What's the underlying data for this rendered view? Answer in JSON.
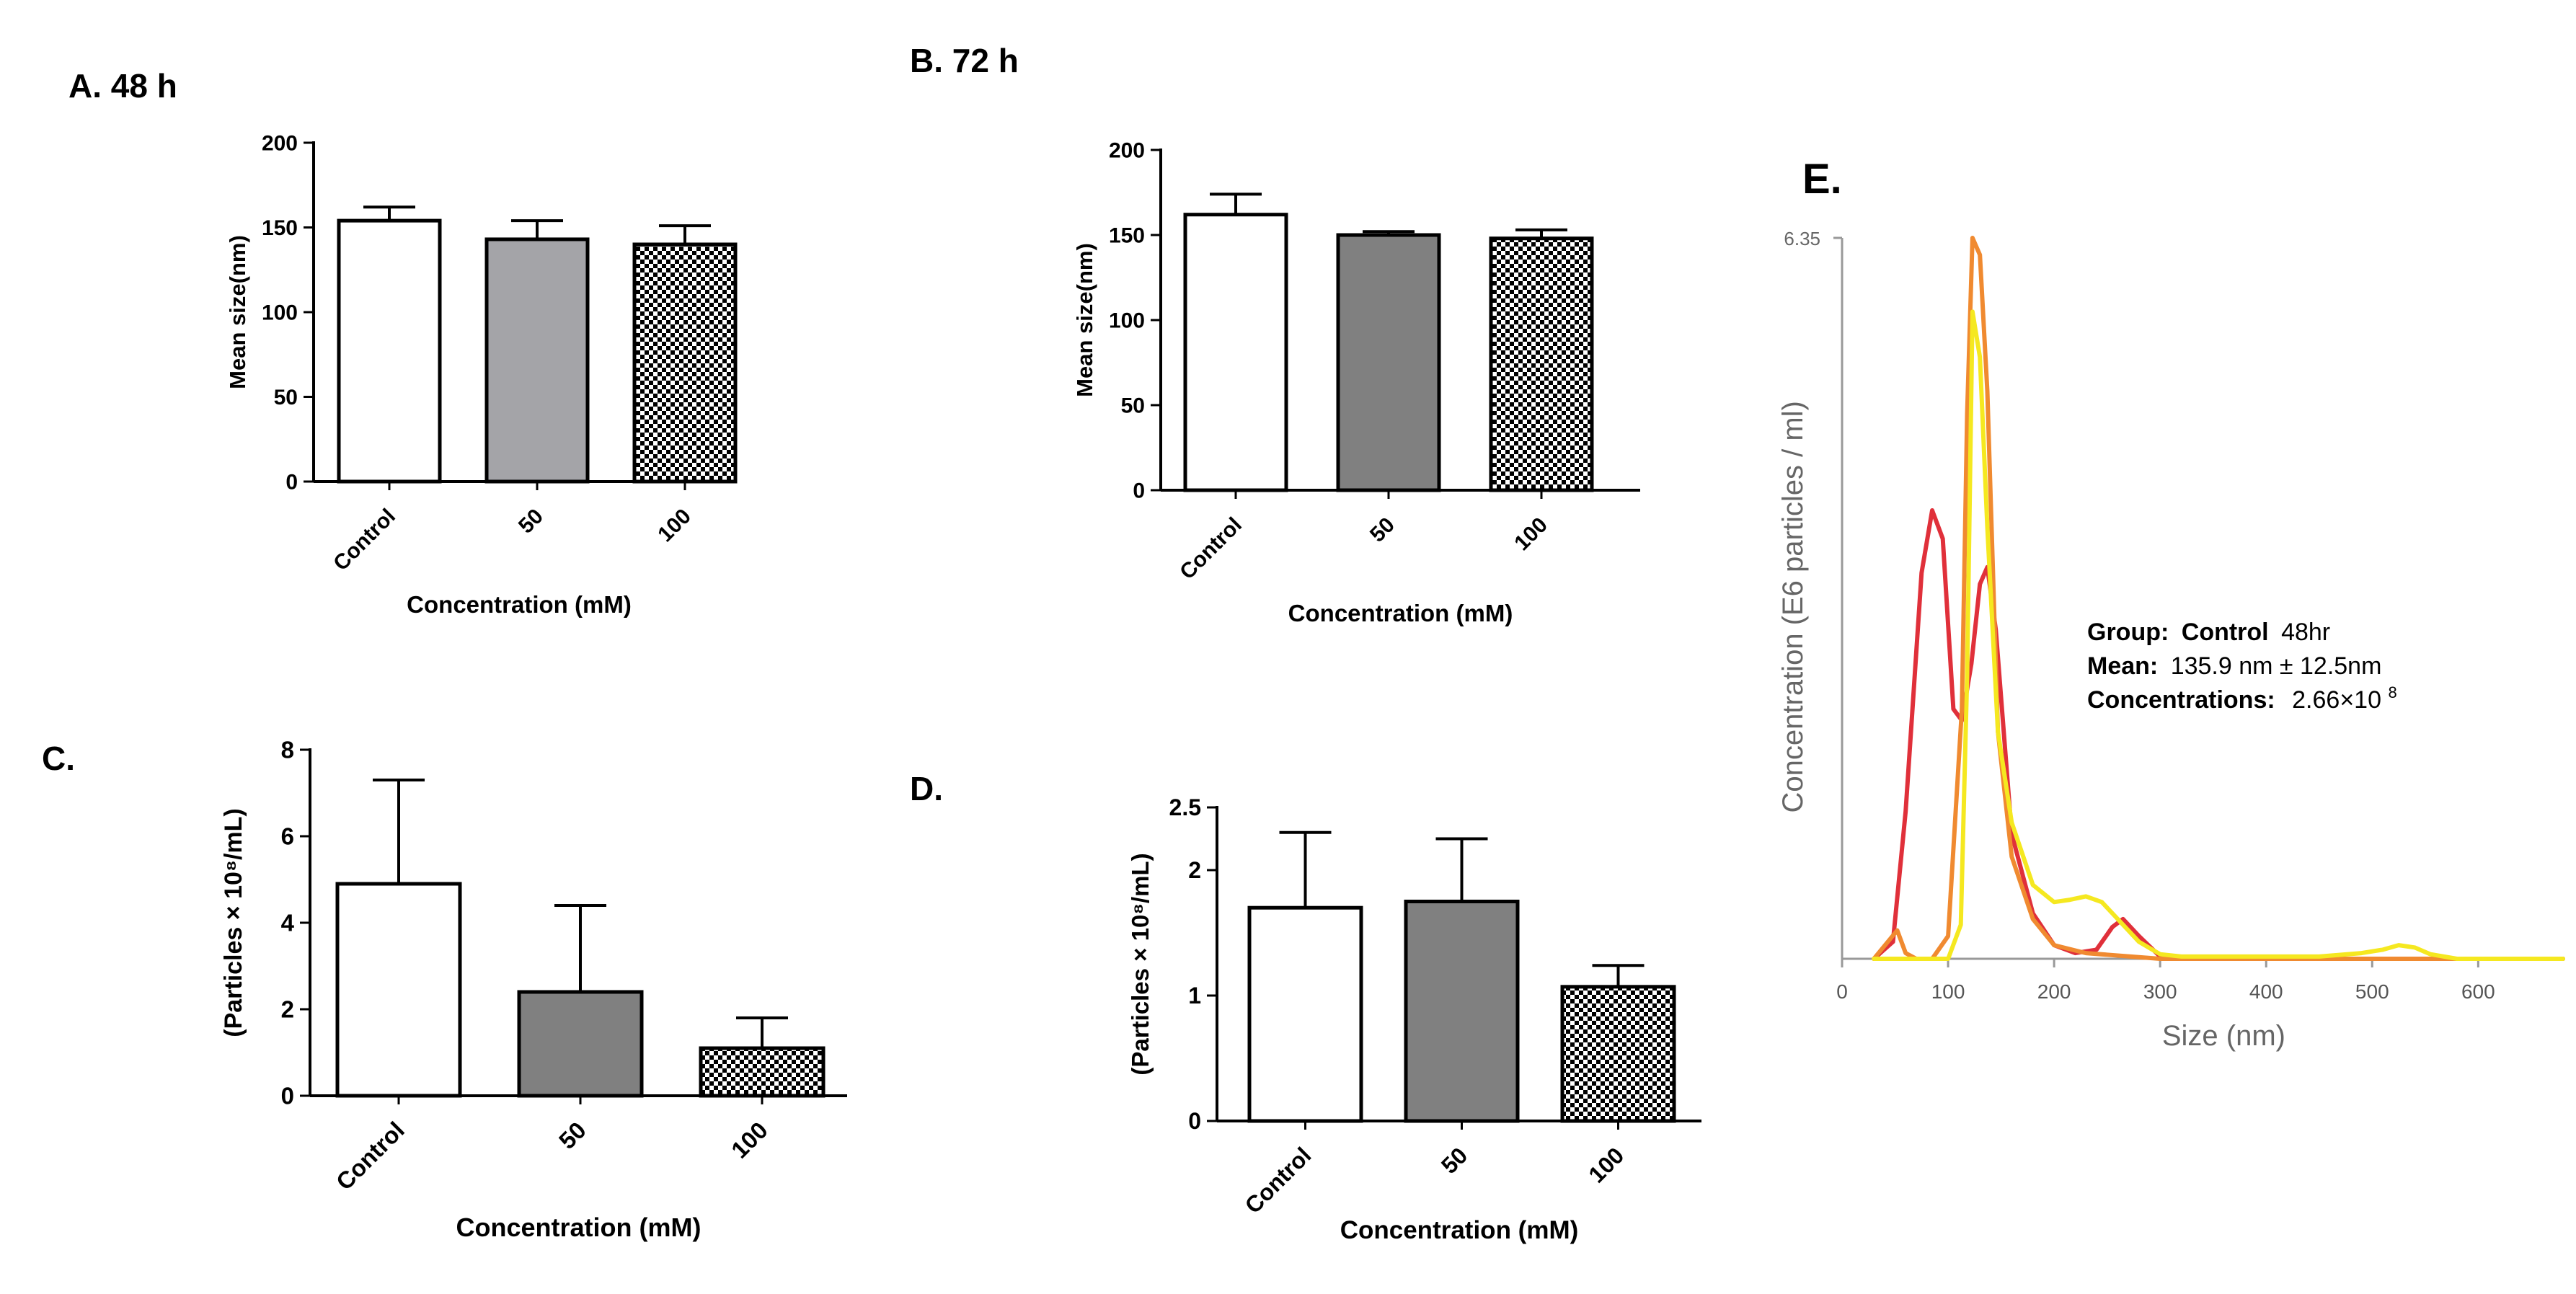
{
  "panels": {
    "A": {
      "label": "A. 48 h"
    },
    "B": {
      "label": "B. 72 h"
    },
    "C": {
      "label": "C."
    },
    "D": {
      "label": "D."
    },
    "E": {
      "label": "E."
    }
  },
  "info_box": {
    "group_key": "Group:",
    "group_value": "Control",
    "group_suffix": "48hr",
    "mean_key": "Mean:",
    "mean_value": "135.9 nm ± 12.5nm",
    "conc_key": "Concentrations:",
    "conc_value": "2.66×10",
    "conc_exp": "8"
  },
  "colors": {
    "bar_50_light": "#a4a4a8",
    "bar_50_dark": "#808080",
    "checker": "#000000",
    "line_red": "#e0303a",
    "line_orange": "#f08a30",
    "line_yellow": "#f5e820",
    "axis_gray": "#999999"
  },
  "chart_data": [
    {
      "id": "A",
      "type": "bar",
      "categories": [
        "Control",
        "50",
        "100"
      ],
      "values": [
        154,
        143,
        140
      ],
      "errors": [
        8,
        11,
        11
      ],
      "fills": [
        "white",
        "gray-light",
        "checker"
      ],
      "ylabel": "Mean size(nm)",
      "xlabel": "Concentration (mM)",
      "ylim": [
        0,
        200
      ],
      "yticks": [
        "0",
        "50",
        "100",
        "150",
        "200"
      ]
    },
    {
      "id": "B",
      "type": "bar",
      "categories": [
        "Control",
        "50",
        "100"
      ],
      "values": [
        162,
        150,
        148
      ],
      "errors": [
        12,
        2,
        5
      ],
      "fills": [
        "white",
        "gray-dark",
        "checker"
      ],
      "ylabel": "Mean size(nm)",
      "xlabel": "Concentration (mM)",
      "ylim": [
        0,
        200
      ],
      "yticks": [
        "0",
        "50",
        "100",
        "150",
        "200"
      ]
    },
    {
      "id": "C",
      "type": "bar",
      "categories": [
        "Control",
        "50",
        "100"
      ],
      "values": [
        4.9,
        2.4,
        1.1
      ],
      "errors": [
        2.4,
        2.0,
        0.7
      ],
      "fills": [
        "white",
        "gray-dark",
        "checker"
      ],
      "ylabel": "(Particles × 10⁸/mL)",
      "xlabel": "Concentration (mM)",
      "ylim": [
        0,
        8
      ],
      "yticks": [
        "0",
        "2",
        "4",
        "6",
        "8"
      ]
    },
    {
      "id": "D",
      "type": "bar",
      "categories": [
        "Control",
        "50",
        "100"
      ],
      "values": [
        1.7,
        1.75,
        1.07
      ],
      "errors": [
        0.6,
        0.5,
        0.17
      ],
      "fills": [
        "white",
        "gray-dark",
        "checker"
      ],
      "ylabel": "(Particles × 10⁸/mL)",
      "xlabel": "Concentration (mM)",
      "ylim": [
        0,
        2.5
      ],
      "yticks": [
        "0",
        "1",
        "2",
        "2.5"
      ]
    },
    {
      "id": "E",
      "type": "line",
      "xlabel": "Size (nm)",
      "ylabel": "Concentration (E6 particles / ml)",
      "xlim": [
        0,
        680
      ],
      "ylim": [
        0,
        6.35
      ],
      "xticks": [
        "0",
        "100",
        "200",
        "300",
        "400",
        "500",
        "600"
      ],
      "ytick_top": "6.35",
      "series": [
        {
          "color": "red",
          "x": [
            30,
            48,
            60,
            75,
            85,
            95,
            105,
            113,
            122,
            130,
            137,
            145,
            160,
            180,
            200,
            220,
            240,
            255,
            265,
            280,
            300,
            320,
            680
          ],
          "y": [
            0,
            0.15,
            1.3,
            3.4,
            3.95,
            3.7,
            2.2,
            2.1,
            2.6,
            3.3,
            3.45,
            2.9,
            1.1,
            0.4,
            0.12,
            0.05,
            0.08,
            0.28,
            0.35,
            0.2,
            0.02,
            0,
            0
          ]
        },
        {
          "color": "orange",
          "x": [
            30,
            52,
            60,
            70,
            85,
            100,
            113,
            118,
            123,
            130,
            137,
            147,
            160,
            180,
            200,
            230,
            300,
            680
          ],
          "y": [
            0,
            0.25,
            0.05,
            0,
            0,
            0.2,
            2.2,
            4.8,
            6.35,
            6.2,
            5.0,
            2.0,
            0.9,
            0.35,
            0.12,
            0.05,
            0,
            0
          ]
        },
        {
          "color": "yellow",
          "x": [
            30,
            100,
            112,
            118,
            123,
            130,
            137,
            147,
            160,
            180,
            200,
            215,
            230,
            245,
            260,
            280,
            300,
            320,
            450,
            490,
            510,
            525,
            540,
            555,
            580,
            680
          ],
          "y": [
            0,
            0,
            0.3,
            2.5,
            5.7,
            5.3,
            3.8,
            2.0,
            1.2,
            0.65,
            0.5,
            0.52,
            0.55,
            0.5,
            0.35,
            0.15,
            0.04,
            0.02,
            0.02,
            0.05,
            0.08,
            0.12,
            0.1,
            0.04,
            0,
            0
          ]
        }
      ]
    }
  ]
}
